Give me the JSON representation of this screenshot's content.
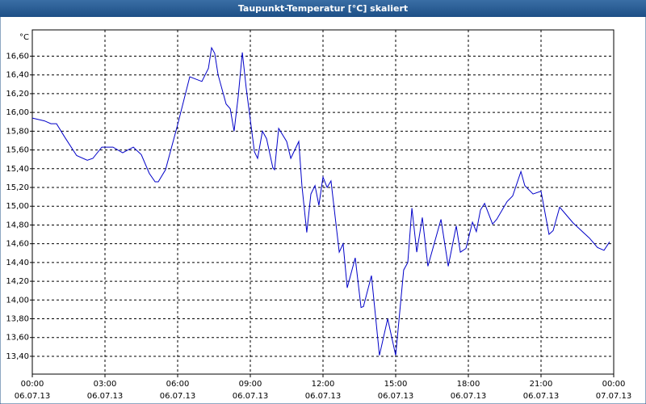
{
  "chart_data": {
    "type": "line",
    "title": "Taupunkt-Temperatur [°C] skaliert",
    "y_unit": "°C",
    "x": [
      0,
      0.5,
      0.77,
      1,
      1.33,
      1.83,
      2.27,
      2.5,
      2.87,
      3.33,
      3.73,
      4.17,
      4.5,
      4.83,
      5.07,
      5.2,
      5.5,
      6,
      6.5,
      7,
      7.27,
      7.4,
      7.53,
      7.67,
      8,
      8.17,
      8.33,
      8.5,
      8.67,
      8.83,
      9.17,
      9.3,
      9.5,
      9.67,
      9.93,
      10,
      10.17,
      10.5,
      10.67,
      11,
      11.13,
      11.33,
      11.5,
      11.67,
      11.83,
      12,
      12.17,
      12.33,
      12.67,
      12.83,
      13,
      13.33,
      13.57,
      13.67,
      14,
      14.33,
      14.67,
      15,
      15.33,
      15.5,
      15.67,
      15.87,
      16.1,
      16.33,
      16.87,
      17.17,
      17.5,
      17.67,
      17.9,
      18.17,
      18.33,
      18.5,
      18.67,
      19,
      19.17,
      19.6,
      19.83,
      20.17,
      20.33,
      20.67,
      21,
      21.33,
      21.5,
      21.77,
      22,
      22.33,
      23,
      23.33,
      23.6,
      23.83
    ],
    "series": [
      {
        "name": "Taupunkt-Temperatur",
        "color": "#0000c8",
        "values": [
          15.94,
          15.91,
          15.88,
          15.88,
          15.74,
          15.54,
          15.49,
          15.51,
          15.63,
          15.63,
          15.57,
          15.63,
          15.55,
          15.35,
          15.26,
          15.26,
          15.39,
          15.87,
          16.38,
          16.33,
          16.47,
          16.69,
          16.63,
          16.4,
          16.09,
          16.04,
          15.8,
          16.17,
          16.64,
          16.26,
          15.58,
          15.51,
          15.8,
          15.72,
          15.41,
          15.39,
          15.83,
          15.69,
          15.51,
          15.69,
          15.22,
          14.72,
          15.13,
          15.22,
          15.01,
          15.31,
          15.2,
          15.27,
          14.51,
          14.6,
          14.13,
          14.45,
          13.92,
          13.93,
          14.26,
          13.41,
          13.8,
          13.41,
          14.32,
          14.4,
          14.98,
          14.51,
          14.88,
          14.36,
          14.86,
          14.36,
          14.79,
          14.51,
          14.55,
          14.83,
          14.73,
          14.96,
          15.03,
          14.81,
          14.86,
          15.05,
          15.11,
          15.37,
          15.22,
          15.13,
          15.16,
          14.7,
          14.74,
          14.99,
          14.92,
          14.82,
          14.66,
          14.56,
          14.53,
          14.62
        ]
      }
    ],
    "xlim": [
      0,
      24
    ],
    "xticks": [
      {
        "value": 0,
        "label": "00:00"
      },
      {
        "value": 3,
        "label": "03:00"
      },
      {
        "value": 6,
        "label": "06:00"
      },
      {
        "value": 9,
        "label": "09:00"
      },
      {
        "value": 12,
        "label": "12:00"
      },
      {
        "value": 15,
        "label": "15:00"
      },
      {
        "value": 18,
        "label": "18:00"
      },
      {
        "value": 21,
        "label": "21:00"
      },
      {
        "value": 24,
        "label": "00:00"
      }
    ],
    "xtick_dates": [
      "06.07.13",
      "06.07.13",
      "06.07.13",
      "06.07.13",
      "06.07.13",
      "06.07.13",
      "06.07.13",
      "06.07.13",
      "07.07.13"
    ],
    "ylim": [
      13.21,
      16.88
    ],
    "yticks": [
      {
        "value": 13.4,
        "label": "13,40"
      },
      {
        "value": 13.6,
        "label": "13,60"
      },
      {
        "value": 13.8,
        "label": "13,80"
      },
      {
        "value": 14,
        "label": "14,00"
      },
      {
        "value": 14.2,
        "label": "14,20"
      },
      {
        "value": 14.4,
        "label": "14,40"
      },
      {
        "value": 14.6,
        "label": "14,60"
      },
      {
        "value": 14.8,
        "label": "14,80"
      },
      {
        "value": 15,
        "label": "15,00"
      },
      {
        "value": 15.2,
        "label": "15,20"
      },
      {
        "value": 15.4,
        "label": "15,40"
      },
      {
        "value": 15.6,
        "label": "15,60"
      },
      {
        "value": 15.8,
        "label": "15,80"
      },
      {
        "value": 16,
        "label": "16,00"
      },
      {
        "value": 16.2,
        "label": "16,20"
      },
      {
        "value": 16.4,
        "label": "16,40"
      },
      {
        "value": 16.6,
        "label": "16,60"
      }
    ],
    "grid": true
  }
}
